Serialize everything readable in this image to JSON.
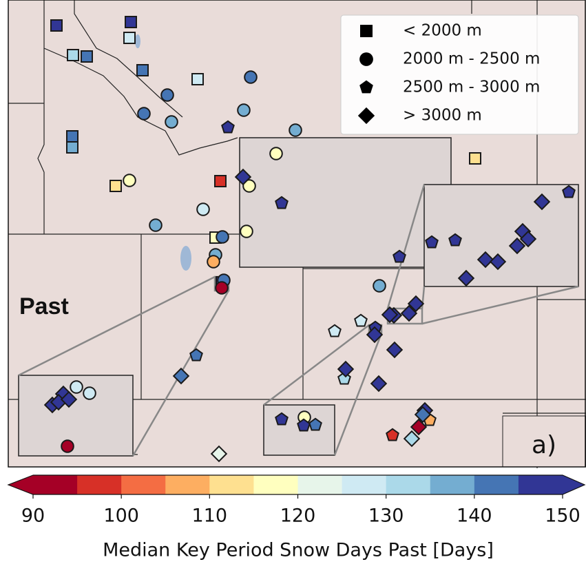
{
  "labels": {
    "period": "Past",
    "panel": "a)"
  },
  "colorbar": {
    "label": "Median Key Period Snow Days Past [Days]",
    "lim": [
      90,
      150
    ],
    "ticks": [
      90,
      100,
      110,
      120,
      130,
      140,
      150
    ],
    "colors": [
      "#a50026",
      "#d73027",
      "#f46d43",
      "#fdae61",
      "#fee090",
      "#ffffbf",
      "#e7f5ea",
      "#cfeaf3",
      "#abd9e9",
      "#74add1",
      "#4575b4",
      "#313695"
    ]
  },
  "stations": {
    "groups": [
      {
        "name": "< 2000 m",
        "shape": "square",
        "values": [
          147,
          147,
          127,
          133,
          142,
          143,
          127,
          143,
          138,
          112,
          96,
          110,
          117,
          147
        ]
      },
      {
        "name": "2000 m - 2500 m",
        "shape": "circle",
        "values": [
          143,
          142,
          143,
          138,
          138,
          138,
          115,
          117,
          115,
          127,
          135,
          117,
          143,
          137,
          107,
          143,
          137,
          93,
          128,
          125,
          93,
          118
        ]
      },
      {
        "name": "2500 m - 3000 m",
        "shape": "pentagon",
        "values": [
          147,
          147,
          147,
          127,
          125,
          143,
          133,
          147,
          140,
          147,
          147,
          147,
          147,
          97,
          107,
          147
        ]
      },
      {
        "name": "> 3000 m",
        "shape": "diamond",
        "values": [
          147,
          147,
          147,
          147,
          147,
          147,
          147,
          147,
          147,
          147,
          147,
          147,
          147,
          147,
          147,
          147,
          140,
          147,
          147,
          147,
          147,
          122,
          147,
          140,
          133,
          93
        ]
      }
    ]
  }
}
